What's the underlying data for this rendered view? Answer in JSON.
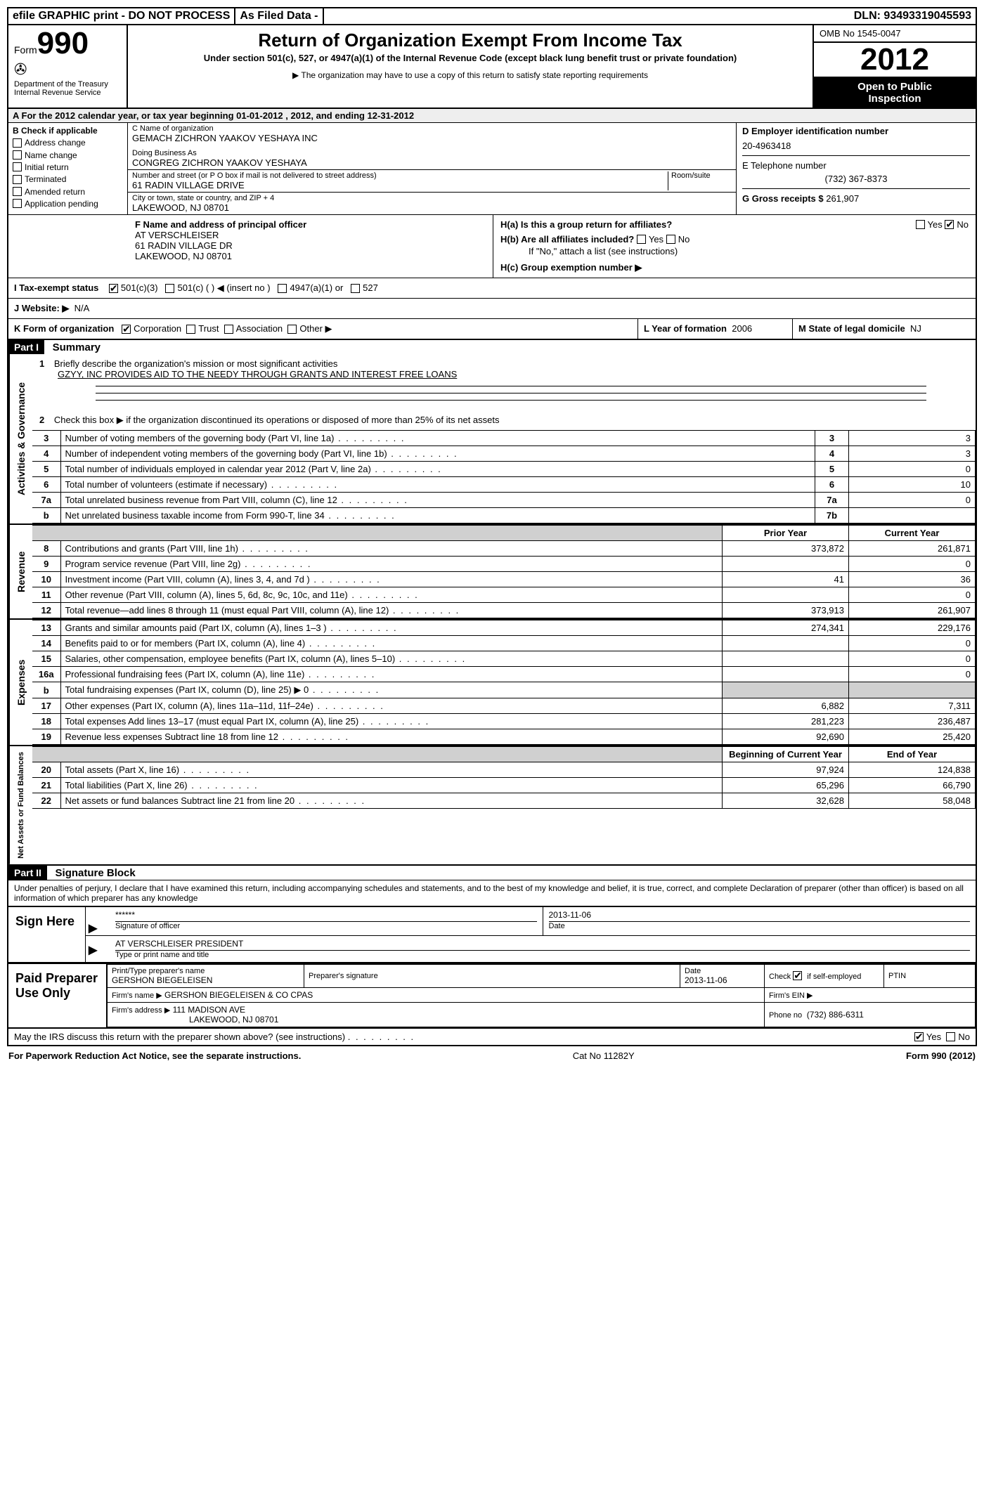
{
  "topbar": {
    "efile": "efile GRAPHIC print - DO NOT PROCESS",
    "asfiled": "As Filed Data -",
    "dln_label": "DLN:",
    "dln": "93493319045593"
  },
  "header": {
    "form_label": "Form",
    "form_num": "990",
    "dept1": "Department of the Treasury",
    "dept2": "Internal Revenue Service",
    "title": "Return of Organization Exempt From Income Tax",
    "subtitle": "Under section 501(c), 527, or 4947(a)(1) of the Internal Revenue Code (except black lung benefit trust or private foundation)",
    "copy_note": "▶ The organization may have to use a copy of this return to satisfy state reporting requirements",
    "omb": "OMB No 1545-0047",
    "year": "2012",
    "open1": "Open to Public",
    "open2": "Inspection"
  },
  "sectionA": "A  For the 2012 calendar year, or tax year beginning 01-01-2012    , 2012, and ending 12-31-2012",
  "boxB": {
    "title": "B  Check if applicable",
    "items": [
      "Address change",
      "Name change",
      "Initial return",
      "Terminated",
      "Amended return",
      "Application pending"
    ]
  },
  "boxC": {
    "name_label": "C Name of organization",
    "name": "GEMACH ZICHRON YAAKOV YESHAYA INC",
    "dba_label": "Doing Business As",
    "dba": "CONGREG ZICHRON YAAKOV YESHAYA",
    "street_label": "Number and street (or P O  box if mail is not delivered to street address)",
    "room_label": "Room/suite",
    "street": "61 RADIN VILLAGE DRIVE",
    "city_label": "City or town, state or country, and ZIP + 4",
    "city": "LAKEWOOD, NJ  08701"
  },
  "boxD": {
    "label": "D Employer identification number",
    "value": "20-4963418"
  },
  "boxE": {
    "label": "E Telephone number",
    "value": "(732) 367-8373"
  },
  "boxG": {
    "label": "G Gross receipts $",
    "value": "261,907"
  },
  "boxF": {
    "label": "F  Name and address of principal officer",
    "l1": "AT VERSCHLEISER",
    "l2": "61 RADIN VILLAGE DR",
    "l3": "LAKEWOOD, NJ  08701"
  },
  "boxH": {
    "a": "H(a)  Is this a group return for affiliates?",
    "b": "H(b)  Are all affiliates included?",
    "b_note": "If \"No,\" attach a list  (see instructions)",
    "c": "H(c)   Group exemption number ▶",
    "yes": "Yes",
    "no": "No"
  },
  "lineI": {
    "label": "I   Tax-exempt status",
    "o1": "501(c)(3)",
    "o2": "501(c) (   ) ◀ (insert no )",
    "o3": "4947(a)(1) or",
    "o4": "527"
  },
  "lineJ": {
    "label": "J   Website: ▶",
    "value": "N/A"
  },
  "lineK": {
    "label": "K Form of organization",
    "o1": "Corporation",
    "o2": "Trust",
    "o3": "Association",
    "o4": "Other ▶"
  },
  "lineL": {
    "label": "L Year of formation",
    "value": "2006"
  },
  "lineM": {
    "label": "M State of legal domicile",
    "value": "NJ"
  },
  "part1": {
    "label": "Part I",
    "title": "Summary"
  },
  "summary": {
    "q1_label": "Briefly describe the organization's mission or most significant activities",
    "q1_value": "GZYY, INC  PROVIDES AID TO THE NEEDY THROUGH GRANTS AND INTEREST FREE LOANS",
    "q2": "Check this box ▶      if the organization discontinued its operations or disposed of more than 25% of its net assets",
    "rows_gov": [
      {
        "n": "3",
        "d": "Number of voting members of the governing body (Part VI, line 1a)",
        "box": "3",
        "v": "3"
      },
      {
        "n": "4",
        "d": "Number of independent voting members of the governing body (Part VI, line 1b)",
        "box": "4",
        "v": "3"
      },
      {
        "n": "5",
        "d": "Total number of individuals employed in calendar year 2012 (Part V, line 2a)",
        "box": "5",
        "v": "0"
      },
      {
        "n": "6",
        "d": "Total number of volunteers (estimate if necessary)",
        "box": "6",
        "v": "10"
      },
      {
        "n": "7a",
        "d": "Total unrelated business revenue from Part VIII, column (C), line 12",
        "box": "7a",
        "v": "0"
      },
      {
        "n": "b",
        "d": "Net unrelated business taxable income from Form 990-T, line 34",
        "box": "7b",
        "v": ""
      }
    ],
    "col_prior": "Prior Year",
    "col_current": "Current Year",
    "revenue": [
      {
        "n": "8",
        "d": "Contributions and grants (Part VIII, line 1h)",
        "p": "373,872",
        "c": "261,871"
      },
      {
        "n": "9",
        "d": "Program service revenue (Part VIII, line 2g)",
        "p": "",
        "c": "0"
      },
      {
        "n": "10",
        "d": "Investment income (Part VIII, column (A), lines 3, 4, and 7d )",
        "p": "41",
        "c": "36"
      },
      {
        "n": "11",
        "d": "Other revenue (Part VIII, column (A), lines 5, 6d, 8c, 9c, 10c, and 11e)",
        "p": "",
        "c": "0"
      },
      {
        "n": "12",
        "d": "Total revenue—add lines 8 through 11 (must equal Part VIII, column (A), line 12)",
        "p": "373,913",
        "c": "261,907"
      }
    ],
    "expenses": [
      {
        "n": "13",
        "d": "Grants and similar amounts paid (Part IX, column (A), lines 1–3 )",
        "p": "274,341",
        "c": "229,176"
      },
      {
        "n": "14",
        "d": "Benefits paid to or for members (Part IX, column (A), line 4)",
        "p": "",
        "c": "0"
      },
      {
        "n": "15",
        "d": "Salaries, other compensation, employee benefits (Part IX, column (A), lines 5–10)",
        "p": "",
        "c": "0"
      },
      {
        "n": "16a",
        "d": "Professional fundraising fees (Part IX, column (A), line 11e)",
        "p": "",
        "c": "0"
      },
      {
        "n": "b",
        "d": "Total fundraising expenses (Part IX, column (D), line 25)  ▶ 0",
        "p": "shade",
        "c": "shade"
      },
      {
        "n": "17",
        "d": "Other expenses (Part IX, column (A), lines 11a–11d, 11f–24e)",
        "p": "6,882",
        "c": "7,311"
      },
      {
        "n": "18",
        "d": "Total expenses  Add lines 13–17 (must equal Part IX, column (A), line 25)",
        "p": "281,223",
        "c": "236,487"
      },
      {
        "n": "19",
        "d": "Revenue less expenses  Subtract line 18 from line 12",
        "p": "92,690",
        "c": "25,420"
      }
    ],
    "col_begin": "Beginning of Current Year",
    "col_end": "End of Year",
    "netassets": [
      {
        "n": "20",
        "d": "Total assets (Part X, line 16)",
        "p": "97,924",
        "c": "124,838"
      },
      {
        "n": "21",
        "d": "Total liabilities (Part X, line 26)",
        "p": "65,296",
        "c": "66,790"
      },
      {
        "n": "22",
        "d": "Net assets or fund balances  Subtract line 21 from line 20",
        "p": "32,628",
        "c": "58,048"
      }
    ]
  },
  "vtabs": {
    "gov": "Activities & Governance",
    "rev": "Revenue",
    "exp": "Expenses",
    "net": "Net Assets or Fund Balances"
  },
  "part2": {
    "label": "Part II",
    "title": "Signature Block"
  },
  "perjury": "Under penalties of perjury, I declare that I have examined this return, including accompanying schedules and statements, and to the best of my knowledge and belief, it is true, correct, and complete  Declaration of preparer (other than officer) is based on all information of which preparer has any knowledge",
  "sign": {
    "here": "Sign Here",
    "stars": "******",
    "sig_label": "Signature of officer",
    "date": "2013-11-06",
    "date_label": "Date",
    "name": "AT VERSCHLEISER  PRESIDENT",
    "name_label": "Type or print name and title"
  },
  "paid": {
    "label": "Paid Preparer Use Only",
    "prep_name_label": "Print/Type preparer's name",
    "prep_name": "GERSHON BIEGELEISEN",
    "prep_sig_label": "Preparer's signature",
    "date_label": "Date",
    "date": "2013-11-06",
    "check_label": "Check        if self-employed",
    "ptin_label": "PTIN",
    "firm_name_label": "Firm's name    ▶",
    "firm_name": "GERSHON BIEGELEISEN & CO CPAS",
    "firm_ein_label": "Firm's EIN ▶",
    "firm_addr_label": "Firm's address ▶",
    "firm_addr1": "111 MADISON AVE",
    "firm_addr2": "LAKEWOOD, NJ  08701",
    "phone_label": "Phone no",
    "phone": "(732) 886-6311"
  },
  "discuss": {
    "q": "May the IRS discuss this return with the preparer shown above? (see instructions)",
    "yes": "Yes",
    "no": "No"
  },
  "footer": {
    "left": "For Paperwork Reduction Act Notice, see the separate instructions.",
    "mid": "Cat No 11282Y",
    "right": "Form 990 (2012)"
  }
}
